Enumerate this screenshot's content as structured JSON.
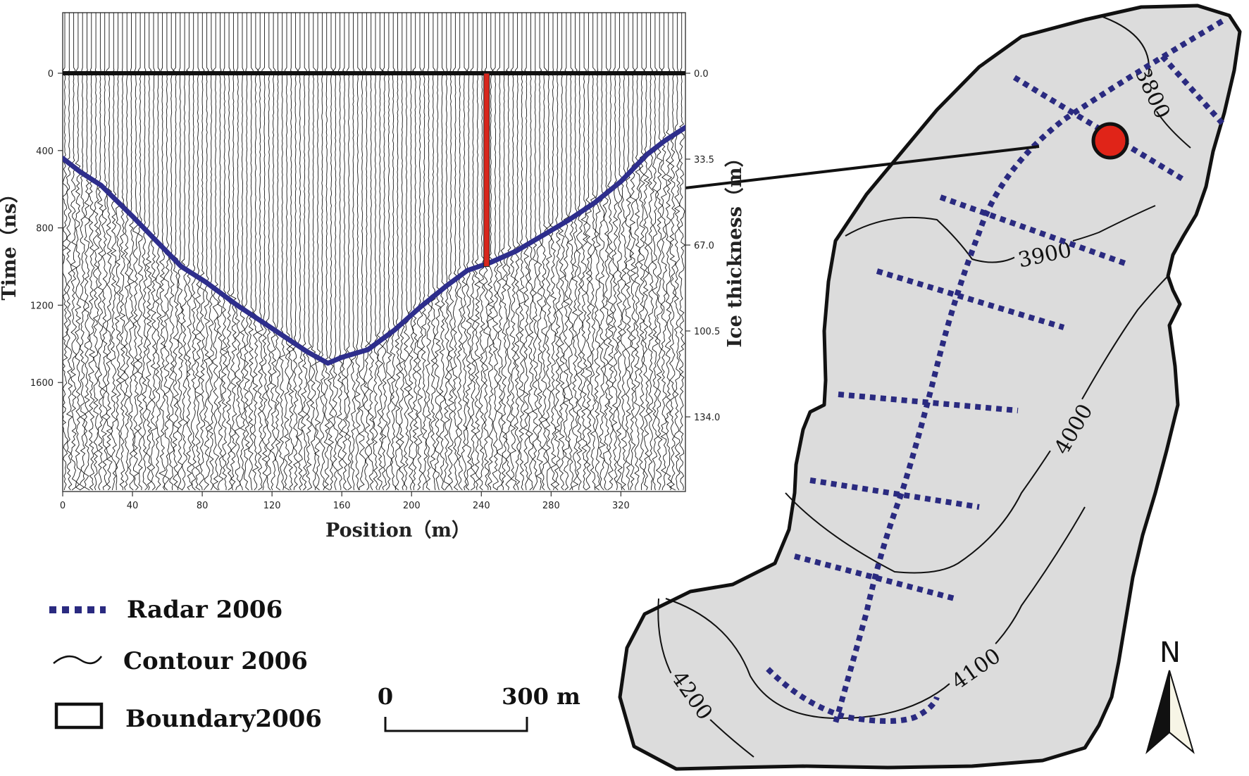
{
  "radargram": {
    "x_axis": {
      "label": "Position（m）",
      "ticks": [
        "0",
        "40",
        "80",
        "120",
        "160",
        "200",
        "240",
        "280",
        "320"
      ]
    },
    "y_axis_left": {
      "label": "Time（ns）",
      "ticks": [
        "0",
        "400",
        "800",
        "1200",
        "1600"
      ]
    },
    "y_axis_right": {
      "label": "Ice thickness（m）",
      "ticks": [
        "0.0",
        "33.5",
        "67.0",
        "100.5",
        "134.0"
      ]
    },
    "bed_line_color": "#2e2e8c",
    "marker_line_color": "#d8261c"
  },
  "chart_data": {
    "type": "line",
    "title": "",
    "xlabel": "Position（m）",
    "ylabel": "Time（ns）",
    "y2label": "Ice thickness（m）",
    "xlim": [
      0,
      357
    ],
    "ylim": [
      1900,
      -120
    ],
    "series": [
      {
        "name": "",
        "x": [
          0,
          10,
          22,
          40,
          55,
          68,
          82,
          100,
          120,
          140,
          152,
          160,
          175,
          190,
          205,
          220,
          232,
          245,
          260,
          275,
          290,
          305,
          320,
          335,
          345,
          357
        ],
        "y": [
          440,
          510,
          580,
          740,
          880,
          1000,
          1080,
          1200,
          1320,
          1440,
          1500,
          1470,
          1430,
          1330,
          1210,
          1100,
          1020,
          980,
          920,
          840,
          760,
          670,
          560,
          420,
          350,
          280
        ]
      }
    ],
    "annotations": [
      {
        "type": "vertical_line",
        "x": 243,
        "y_from": 0,
        "y_to": 1000
      }
    ]
  },
  "map": {
    "contour_labels": [
      "3800",
      "3900",
      "4000",
      "4100",
      "4200"
    ],
    "fill_color": "#dcdcdc",
    "radar_color": "#2a2a80",
    "point_color": "#e02418"
  },
  "legend": {
    "items": [
      {
        "label": "Radar 2006",
        "symbol": "dotted-line"
      },
      {
        "label": "Contour 2006",
        "symbol": "wave-line"
      },
      {
        "label": "Boundary2006",
        "symbol": "rectangle"
      }
    ]
  },
  "scale_bar": {
    "start_label": "0",
    "end_label": "300 m"
  },
  "north_arrow": {
    "label": "N"
  }
}
